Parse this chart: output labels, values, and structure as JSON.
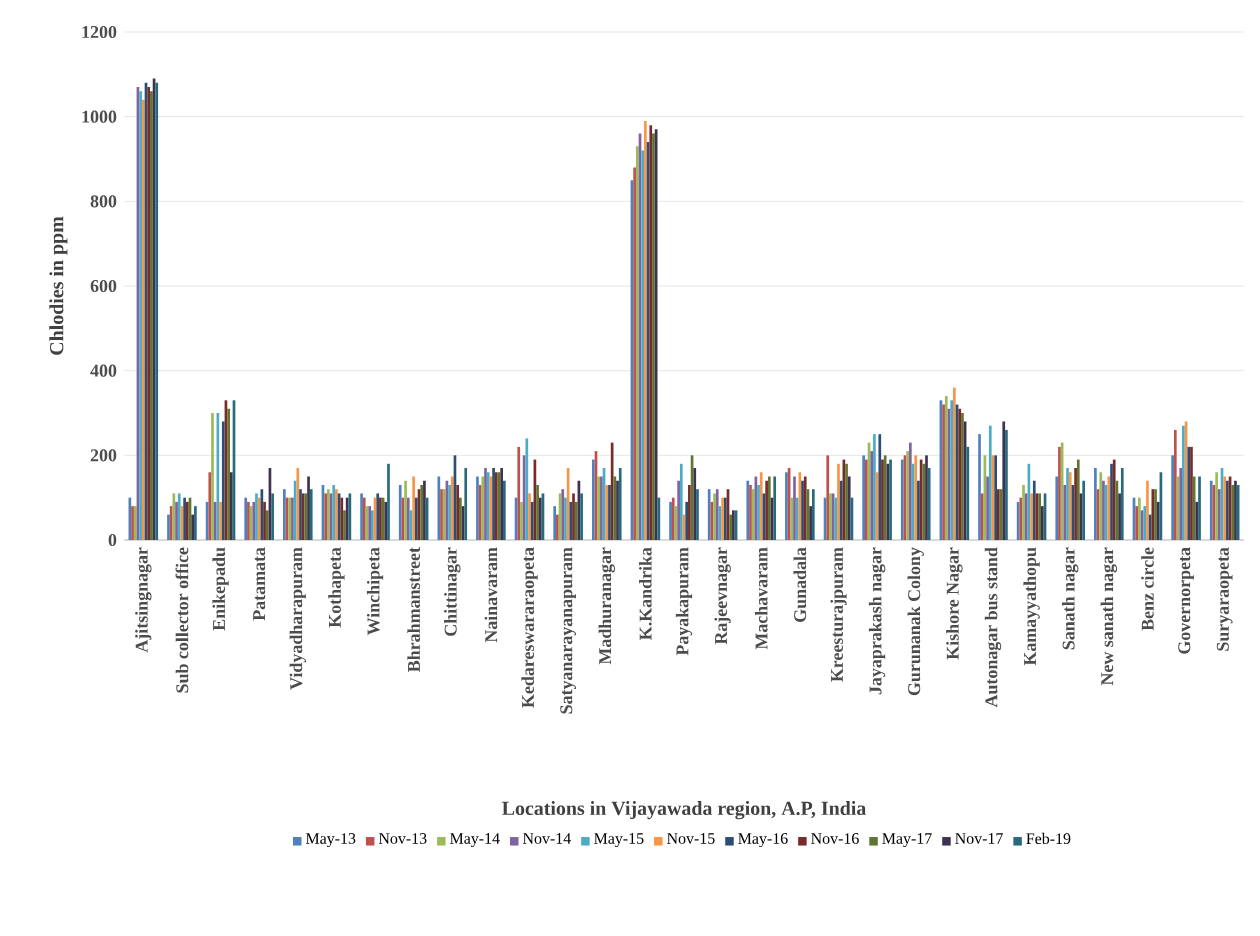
{
  "chart_data": {
    "type": "bar",
    "xlabel": "Locations in Vijayawada region, A.P, India",
    "ylabel": "Chlodies in ppm",
    "categories": [
      "Ajitsingnagar",
      "Sub collector office",
      "Enikepadu",
      "Patamata",
      "Vidyadharapuram",
      "Kothapeta",
      "Winchipeta",
      "Bhrahmanstreet",
      "Chittinagar",
      "Nainavaram",
      "Kedareswararaopeta",
      "Satyanarayanapuram",
      "Madhuranagar",
      "K.Kandrika",
      "Payakapuram",
      "Rajeevnagar",
      "Machavaram",
      "Gunadala",
      "Kreesturajpuram",
      "Jayaprakash nagar",
      "Gurunanak Colony",
      "Kishore Nagar",
      "Autonagar bus stand",
      "Kamayyathopu",
      "Sanath nagar",
      "New sanath nagar",
      "Benz circle",
      "Governorpeta",
      "Suryaraopeta"
    ],
    "series": [
      {
        "name": "May-13",
        "color": "#4f81bd",
        "values": [
          100,
          60,
          90,
          100,
          120,
          130,
          110,
          130,
          150,
          150,
          100,
          80,
          190,
          850,
          90,
          120,
          140,
          160,
          100,
          200,
          190,
          330,
          250,
          90,
          150,
          170,
          100,
          200,
          140
        ]
      },
      {
        "name": "Nov-13",
        "color": "#c0504d",
        "values": [
          80,
          80,
          160,
          90,
          100,
          110,
          100,
          100,
          120,
          130,
          220,
          60,
          210,
          880,
          100,
          90,
          130,
          170,
          200,
          190,
          200,
          320,
          110,
          100,
          220,
          120,
          80,
          260,
          130
        ]
      },
      {
        "name": "May-14",
        "color": "#9bbb59",
        "values": [
          80,
          110,
          300,
          80,
          100,
          120,
          80,
          140,
          120,
          150,
          90,
          110,
          150,
          930,
          80,
          110,
          120,
          100,
          110,
          230,
          210,
          340,
          200,
          130,
          230,
          160,
          100,
          150,
          160
        ]
      },
      {
        "name": "Nov-14",
        "color": "#8064a2",
        "values": [
          1070,
          90,
          90,
          90,
          100,
          110,
          80,
          100,
          140,
          170,
          200,
          120,
          150,
          960,
          140,
          120,
          150,
          150,
          110,
          210,
          230,
          310,
          150,
          110,
          130,
          140,
          70,
          170,
          120
        ]
      },
      {
        "name": "May-15",
        "color": "#4bacc6",
        "values": [
          1060,
          110,
          300,
          110,
          140,
          130,
          70,
          70,
          130,
          160,
          240,
          100,
          170,
          920,
          180,
          80,
          130,
          100,
          100,
          250,
          180,
          330,
          270,
          180,
          170,
          130,
          80,
          270,
          170
        ]
      },
      {
        "name": "Nov-15",
        "color": "#f79646",
        "values": [
          1040,
          80,
          90,
          100,
          170,
          120,
          100,
          150,
          150,
          150,
          110,
          170,
          130,
          990,
          60,
          100,
          160,
          160,
          180,
          160,
          200,
          360,
          200,
          110,
          160,
          150,
          140,
          280,
          150
        ]
      },
      {
        "name": "May-16",
        "color": "#2c4d75",
        "values": [
          1080,
          100,
          280,
          120,
          120,
          110,
          110,
          100,
          200,
          170,
          90,
          90,
          130,
          940,
          90,
          100,
          110,
          140,
          140,
          250,
          140,
          320,
          200,
          140,
          130,
          180,
          60,
          220,
          140
        ]
      },
      {
        "name": "Nov-16",
        "color": "#772c2a",
        "values": [
          1070,
          90,
          330,
          90,
          110,
          100,
          100,
          120,
          130,
          160,
          190,
          110,
          230,
          980,
          130,
          120,
          140,
          150,
          190,
          190,
          190,
          310,
          120,
          110,
          170,
          190,
          120,
          220,
          150
        ]
      },
      {
        "name": "May-17",
        "color": "#5f7530",
        "values": [
          1060,
          100,
          310,
          70,
          110,
          70,
          100,
          130,
          100,
          160,
          130,
          90,
          150,
          960,
          200,
          60,
          150,
          120,
          180,
          200,
          180,
          300,
          120,
          110,
          190,
          140,
          120,
          150,
          130
        ]
      },
      {
        "name": "Nov-17",
        "color": "#3f3151",
        "values": [
          1090,
          60,
          160,
          170,
          150,
          100,
          90,
          140,
          80,
          170,
          100,
          140,
          140,
          970,
          170,
          70,
          100,
          80,
          150,
          180,
          200,
          280,
          280,
          80,
          110,
          110,
          90,
          90,
          140
        ]
      },
      {
        "name": "Feb-19",
        "color": "#276a7c",
        "values": [
          1080,
          80,
          330,
          110,
          120,
          110,
          180,
          100,
          170,
          140,
          110,
          110,
          170,
          100,
          120,
          70,
          150,
          120,
          100,
          190,
          170,
          220,
          260,
          110,
          140,
          170,
          160,
          150,
          130
        ]
      }
    ],
    "ylim": [
      0,
      1200
    ],
    "yticks": [
      0,
      200,
      400,
      600,
      800,
      1000,
      1200
    ],
    "grid": "y",
    "legend": "bottom"
  }
}
